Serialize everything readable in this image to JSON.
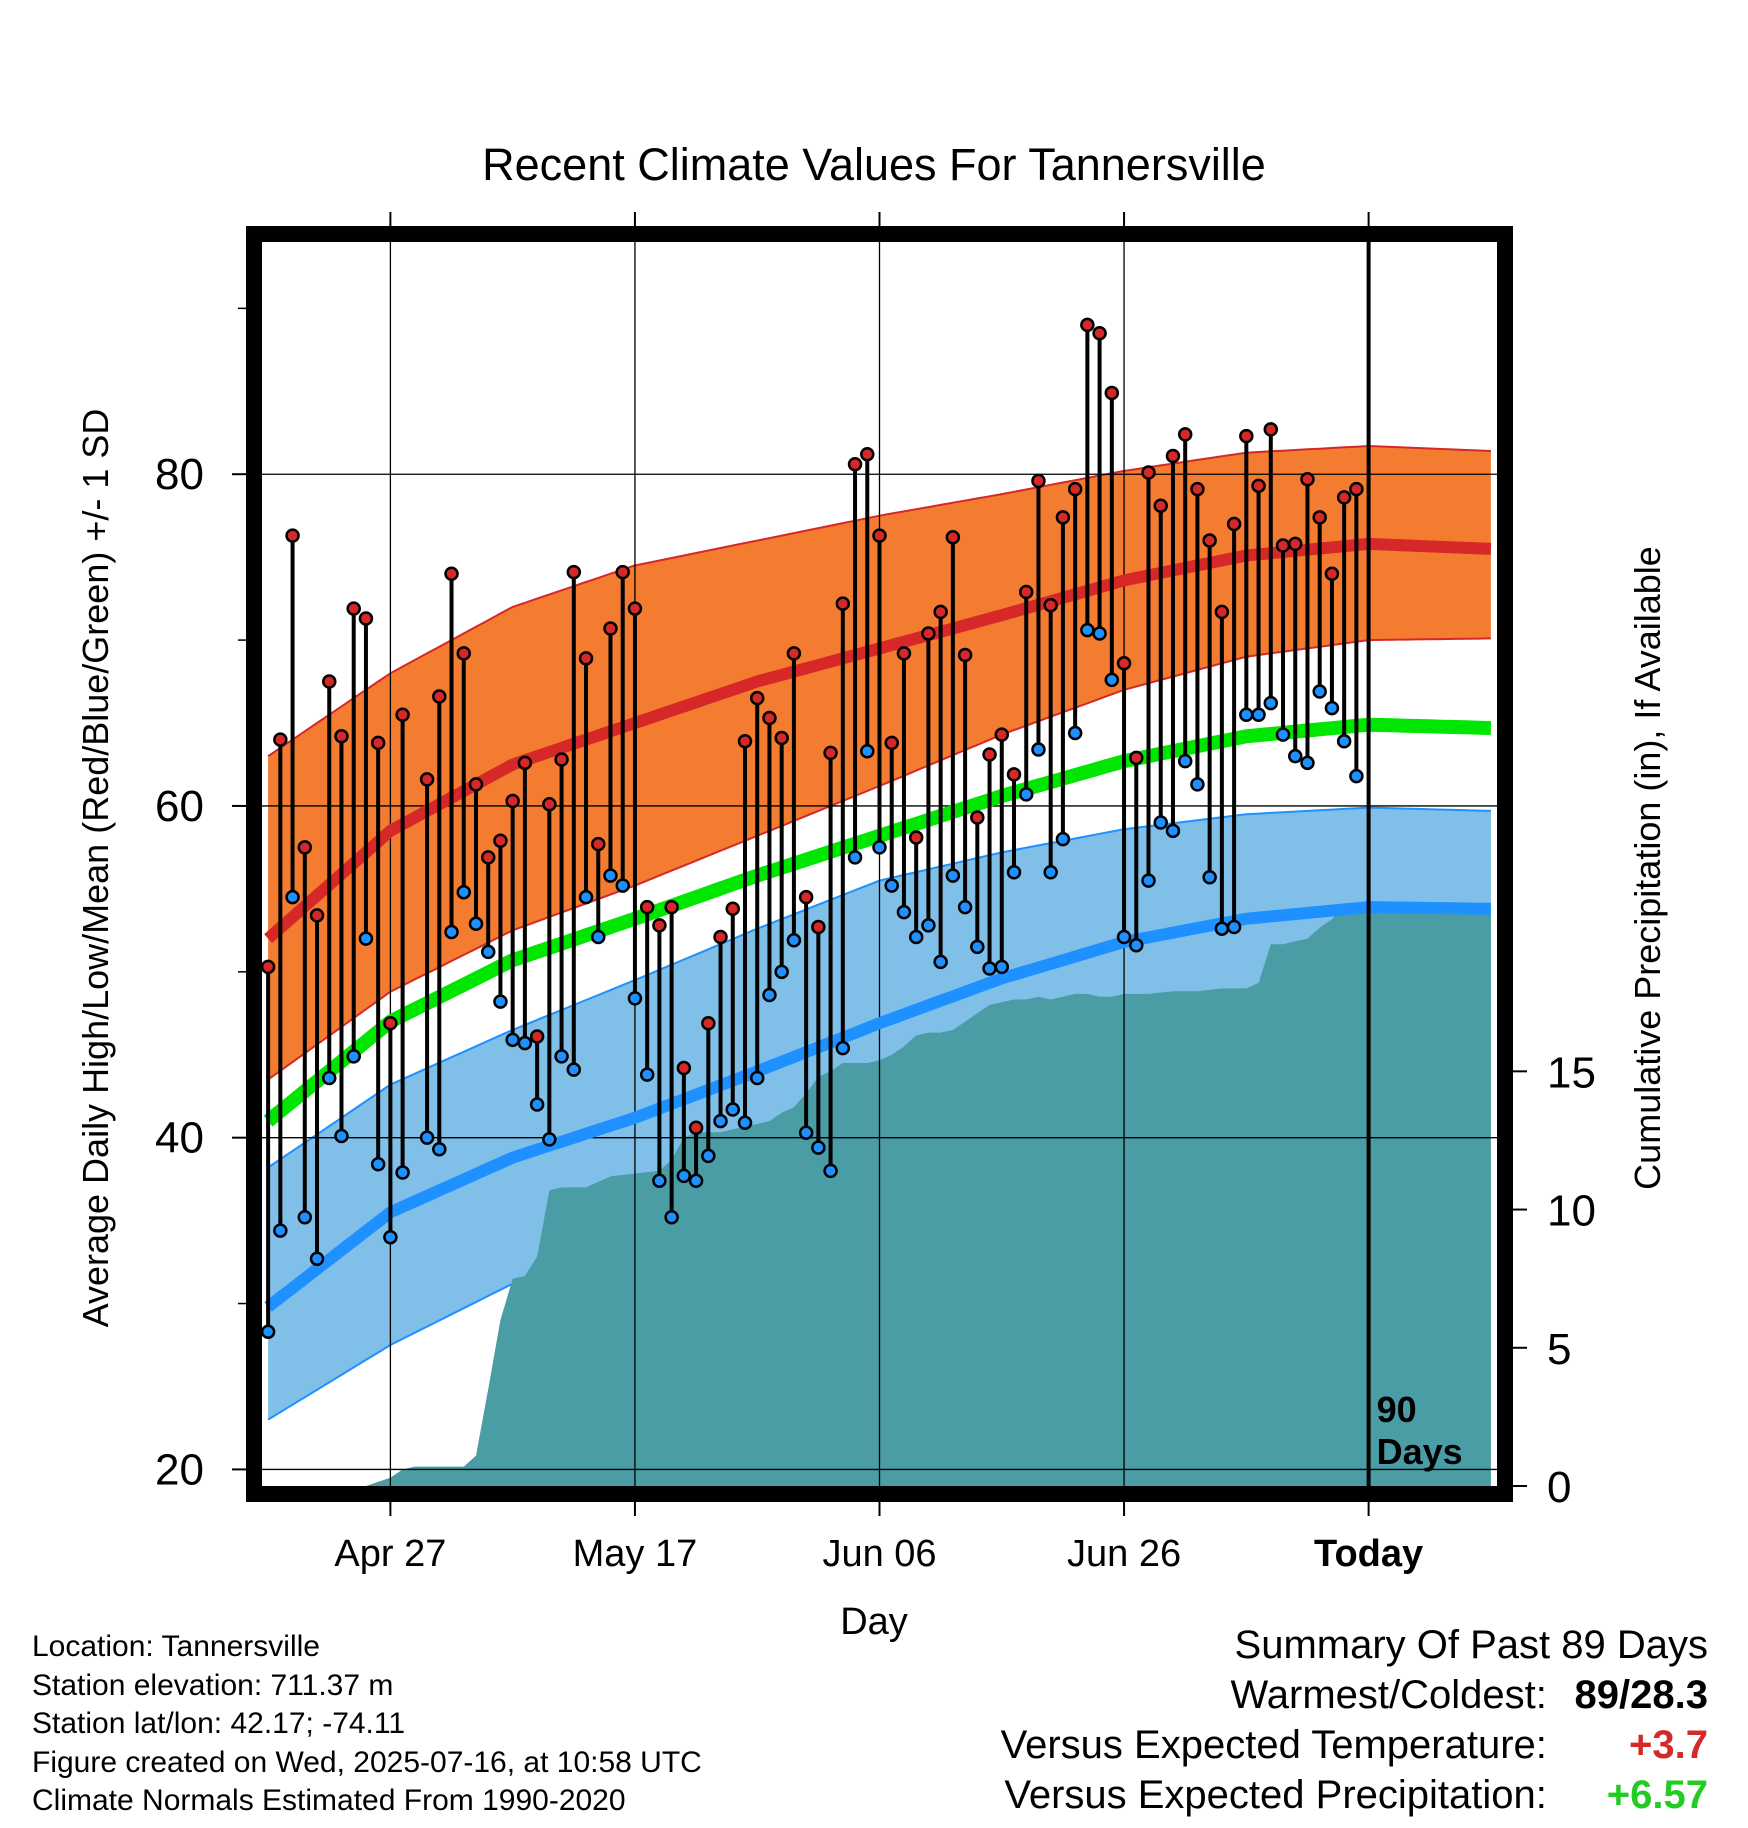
{
  "chart_data": {
    "type": "line",
    "title": "Recent Climate Values For Tannersville",
    "xlabel": "Day",
    "ylabel": "Average Daily High/Low/Mean (Red/Blue/Green) +/- 1 SD",
    "y2label": "Cumulative Precipitation (in), If Available",
    "ylim": [
      19,
      94
    ],
    "y2lim": [
      0,
      45
    ],
    "xlim": [
      -0.5,
      100.5
    ],
    "x_ticks": [
      {
        "day": 10,
        "label": "Apr 27"
      },
      {
        "day": 30,
        "label": "May 17"
      },
      {
        "day": 50,
        "label": "Jun 06"
      },
      {
        "day": 70,
        "label": "Jun 26"
      },
      {
        "day": 90,
        "label": "Today"
      }
    ],
    "y_ticks": [
      20,
      40,
      60,
      80
    ],
    "y2_ticks": [
      0,
      5,
      10,
      15
    ],
    "today_marker": {
      "day": 90,
      "label_line1": "90",
      "label_line2": "Days"
    },
    "colors": {
      "high_band": "#f47c30",
      "high_mean": "#d62828",
      "low_band": "#80c0e8",
      "low_mean": "#1e90ff",
      "mean": "#00e600",
      "precip": "#4a9ca5",
      "stem": "#000000"
    },
    "normals": {
      "days": [
        0,
        10,
        20,
        30,
        40,
        50,
        60,
        70,
        80,
        90,
        100
      ],
      "high_mean": [
        52,
        58.5,
        62.5,
        65,
        67.5,
        69.5,
        71.5,
        73.6,
        75.1,
        75.8,
        75.5
      ],
      "high_upper": [
        63,
        68,
        72,
        74.5,
        76,
        77.5,
        78.8,
        80.2,
        81.3,
        81.7,
        81.4
      ],
      "high_lower": [
        43.5,
        48.8,
        52.5,
        55.2,
        58.2,
        61.2,
        64.3,
        67,
        69,
        70,
        70.1
      ],
      "low_mean": [
        29.8,
        35.5,
        38.8,
        41.2,
        44,
        46.9,
        49.6,
        51.8,
        53.2,
        53.9,
        53.8
      ],
      "low_upper": [
        38.2,
        43.2,
        46.5,
        49.5,
        52.6,
        55.5,
        57.2,
        58.6,
        59.5,
        59.9,
        59.7
      ],
      "low_lower": [
        23,
        27.5,
        31.2,
        34.2,
        37.5,
        40.3,
        42.8,
        45.2,
        47.1,
        47.9,
        48
      ]
    },
    "mean_line": {
      "days": [
        0,
        10,
        20,
        30,
        40,
        50,
        60,
        70,
        80,
        90,
        100
      ],
      "values": [
        41,
        47,
        50.7,
        53.2,
        55.8,
        58.2,
        60.6,
        62.7,
        64.2,
        64.9,
        64.7
      ]
    },
    "precipitation_cumulative": {
      "days": [
        8,
        10,
        11,
        12,
        16,
        17,
        18,
        19,
        20,
        21,
        22,
        23,
        24,
        25,
        26,
        28,
        30,
        32,
        33,
        34,
        35,
        36,
        37,
        38,
        39,
        40,
        41,
        42,
        43,
        44,
        45,
        46,
        47,
        48,
        49,
        50,
        51,
        52,
        53,
        54,
        55,
        56,
        57,
        58,
        59,
        60,
        61,
        62,
        63,
        64,
        65,
        66,
        67,
        68,
        69,
        70,
        72,
        74,
        76,
        78,
        80,
        81,
        82,
        83,
        84,
        85,
        86,
        87,
        88,
        89,
        90,
        100
      ],
      "values": [
        0,
        0.3,
        0.6,
        0.7,
        0.7,
        1.1,
        3.5,
        6,
        7.5,
        7.6,
        8.3,
        10.7,
        10.8,
        10.8,
        10.8,
        11.2,
        11.3,
        11.4,
        11.8,
        12.6,
        12.8,
        12.8,
        12.8,
        12.9,
        13,
        13.1,
        13.2,
        13.5,
        13.7,
        14.2,
        14.8,
        15,
        15.3,
        15.3,
        15.3,
        15.4,
        15.6,
        15.9,
        16.3,
        16.4,
        16.4,
        16.5,
        16.8,
        17.1,
        17.4,
        17.5,
        17.6,
        17.6,
        17.7,
        17.6,
        17.7,
        17.8,
        17.8,
        17.7,
        17.7,
        17.8,
        17.8,
        17.9,
        17.9,
        18,
        18,
        18.2,
        19.6,
        19.6,
        19.7,
        19.8,
        20.2,
        20.5,
        21,
        21,
        21,
        21
      ]
    },
    "observed_high": [
      50.3,
      64,
      76.3,
      57.5,
      53.4,
      67.5,
      64.2,
      71.9,
      71.3,
      63.8,
      46.9,
      65.5,
      null,
      61.6,
      66.6,
      74,
      69.2,
      61.3,
      56.9,
      57.9,
      60.3,
      62.6,
      46.1,
      60.1,
      62.8,
      74.1,
      68.9,
      57.7,
      70.7,
      74.1,
      71.9,
      53.9,
      52.8,
      53.9,
      44.2,
      40.6,
      46.9,
      52.1,
      53.8,
      63.9,
      66.5,
      65.3,
      64.1,
      69.2,
      54.5,
      52.7,
      63.2,
      72.2,
      80.6,
      81.2,
      76.3,
      63.8,
      69.2,
      58.1,
      70.4,
      71.7,
      76.2,
      69.1,
      59.3,
      63.1,
      64.3,
      61.9,
      72.9,
      79.6,
      72.1,
      77.4,
      79.1,
      89,
      88.5,
      84.9,
      68.6,
      62.9,
      80.1,
      78.1,
      81.1,
      82.4,
      79.1,
      76,
      71.7,
      77,
      82.3,
      79.3,
      82.7,
      75.7,
      75.8,
      79.7,
      77.4,
      74,
      78.6,
      79.1
    ],
    "observed_low": [
      28.3,
      34.4,
      54.5,
      35.2,
      32.7,
      43.6,
      40.1,
      44.9,
      52,
      38.4,
      34,
      37.9,
      null,
      40,
      39.3,
      52.4,
      54.8,
      52.9,
      51.2,
      48.2,
      45.9,
      45.7,
      42,
      39.9,
      44.9,
      44.1,
      54.5,
      52.1,
      55.8,
      55.2,
      48.4,
      43.8,
      37.4,
      35.2,
      37.7,
      37.4,
      38.9,
      41,
      41.7,
      40.9,
      43.6,
      48.6,
      50,
      51.9,
      40.3,
      39.4,
      38,
      45.4,
      56.9,
      63.3,
      57.5,
      55.2,
      53.6,
      52.1,
      52.8,
      50.6,
      55.8,
      53.9,
      51.5,
      50.2,
      50.3,
      56,
      60.7,
      63.4,
      56,
      58,
      64.4,
      70.6,
      70.4,
      67.6,
      52.1,
      51.6,
      55.5,
      59,
      58.5,
      62.7,
      61.3,
      55.7,
      52.6,
      52.7,
      65.5,
      65.5,
      66.2,
      64.3,
      63,
      62.6,
      66.9,
      65.9,
      63.9,
      61.8
    ]
  },
  "footer": {
    "location": "Location: Tannersville",
    "elevation": "Station elevation: 711.37 m",
    "latlon": "Station lat/lon: 42.17; -74.11",
    "created": "Figure created on Wed, 2025-07-16, at 10:58 UTC",
    "normals": "Climate Normals Estimated From 1990-2020"
  },
  "summary": {
    "title": "Summary Of Past 89 Days",
    "warmest_coldest_label": "Warmest/Coldest:",
    "warmest_coldest_value": "89/28.3",
    "temp_label": "Versus Expected Temperature:",
    "temp_value": "+3.7",
    "temp_color": "#d62828",
    "precip_label": "Versus Expected Precipitation:",
    "precip_value": "+6.57",
    "precip_color": "#22cc22"
  }
}
